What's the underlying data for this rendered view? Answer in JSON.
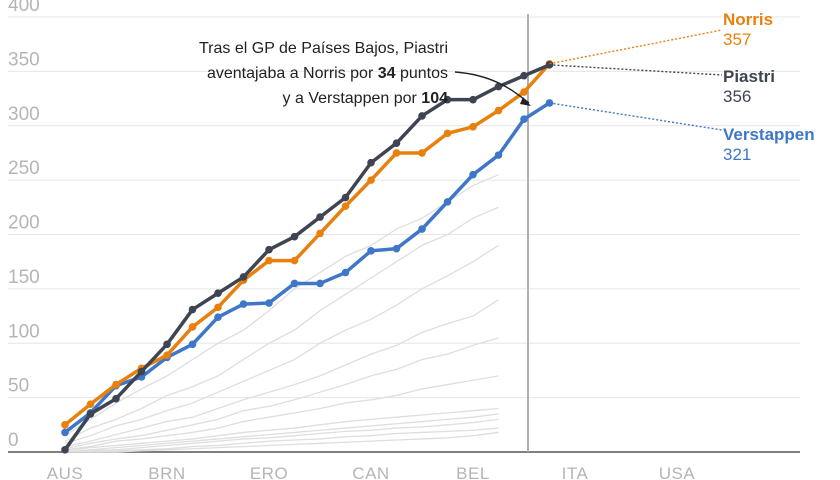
{
  "annotation": {
    "line1": "Tras el GP de Países Bajos, Piastri",
    "line2_pre": "aventajaba a Norris por ",
    "line2_num": "34",
    "line2_post": " puntos",
    "line3_pre": "y a Verstappen por ",
    "line3_num": "104"
  },
  "end_labels": {
    "norris": {
      "name": "Norris",
      "value": "357"
    },
    "piastri": {
      "name": "Piastri",
      "value": "356"
    },
    "verstappen": {
      "name": "Verstappen",
      "value": "321"
    }
  },
  "colors": {
    "norris": "#e8800e",
    "piastri": "#3e4452",
    "verstappen": "#3f77c8",
    "others": "#dedede",
    "marker_line": "#b0b0b0"
  },
  "chart_data": {
    "type": "line",
    "x_tick_labels": [
      "AUS",
      "BRN",
      "ERO",
      "CAN",
      "BEL",
      "ITA",
      "USA"
    ],
    "x_tick_rounds": [
      1,
      5,
      9,
      13,
      17,
      21,
      25
    ],
    "marker_round": 19,
    "ylim": [
      0,
      400
    ],
    "y_ticks": [
      0,
      50,
      100,
      150,
      200,
      250,
      300,
      350,
      400
    ],
    "grid": true,
    "x_rounds": [
      1,
      2,
      3,
      4,
      5,
      6,
      7,
      8,
      9,
      10,
      11,
      12,
      13,
      14,
      15,
      16,
      17,
      18,
      19,
      20,
      21,
      22,
      23,
      24,
      25,
      26
    ],
    "series": [
      {
        "key": "piastri",
        "values": [
          2,
          35,
          49,
          74,
          99,
          131,
          146,
          161,
          186,
          198,
          216,
          234,
          266,
          284,
          309,
          324,
          324,
          336,
          346,
          356
        ]
      },
      {
        "key": "norris",
        "values": [
          25,
          44,
          62,
          77,
          89,
          115,
          133,
          158,
          176,
          176,
          201,
          226,
          250,
          275,
          275,
          293,
          299,
          314,
          331,
          357
        ]
      },
      {
        "key": "verstappen",
        "values": [
          18,
          36,
          61,
          69,
          87,
          99,
          124,
          136,
          137,
          155,
          155,
          165,
          185,
          187,
          205,
          230,
          255,
          273,
          306,
          321
        ]
      },
      {
        "key": "others1",
        "values": [
          15,
          30,
          45,
          58,
          70,
          85,
          100,
          112,
          130,
          150,
          165,
          180,
          190,
          205,
          215,
          230,
          245,
          255
        ]
      },
      {
        "key": "others2",
        "values": [
          10,
          22,
          30,
          40,
          52,
          60,
          70,
          85,
          100,
          112,
          130,
          145,
          160,
          175,
          190,
          200,
          215,
          225
        ]
      },
      {
        "key": "others3",
        "values": [
          8,
          15,
          24,
          30,
          38,
          45,
          55,
          65,
          75,
          85,
          100,
          112,
          122,
          135,
          150,
          162,
          175,
          190
        ]
      },
      {
        "key": "others4",
        "values": [
          5,
          10,
          16,
          22,
          28,
          32,
          40,
          48,
          55,
          62,
          70,
          80,
          90,
          98,
          110,
          118,
          125,
          140
        ]
      },
      {
        "key": "others5",
        "values": [
          3,
          8,
          12,
          15,
          20,
          25,
          30,
          38,
          42,
          48,
          55,
          62,
          70,
          76,
          85,
          90,
          98,
          105
        ]
      },
      {
        "key": "others6",
        "values": [
          2,
          5,
          10,
          12,
          15,
          18,
          22,
          28,
          32,
          36,
          40,
          45,
          48,
          52,
          58,
          62,
          66,
          70
        ]
      },
      {
        "key": "others7",
        "values": [
          1,
          4,
          6,
          8,
          10,
          12,
          15,
          18,
          20,
          22,
          25,
          28,
          30,
          32,
          34,
          36,
          38,
          40
        ]
      },
      {
        "key": "others8",
        "values": [
          0,
          2,
          4,
          6,
          8,
          10,
          12,
          14,
          16,
          18,
          20,
          22,
          24,
          26,
          28,
          30,
          32,
          35
        ]
      },
      {
        "key": "others9",
        "values": [
          0,
          1,
          2,
          4,
          6,
          8,
          10,
          12,
          13,
          15,
          17,
          19,
          20,
          22,
          23,
          25,
          27,
          30
        ]
      },
      {
        "key": "others10",
        "values": [
          0,
          0,
          1,
          2,
          3,
          5,
          6,
          8,
          10,
          11,
          12,
          14,
          15,
          17,
          18,
          19,
          20,
          22
        ]
      },
      {
        "key": "others11",
        "values": [
          0,
          0,
          0,
          1,
          2,
          3,
          4,
          5,
          6,
          7,
          8,
          9,
          10,
          11,
          12,
          13,
          15,
          18
        ]
      }
    ]
  }
}
